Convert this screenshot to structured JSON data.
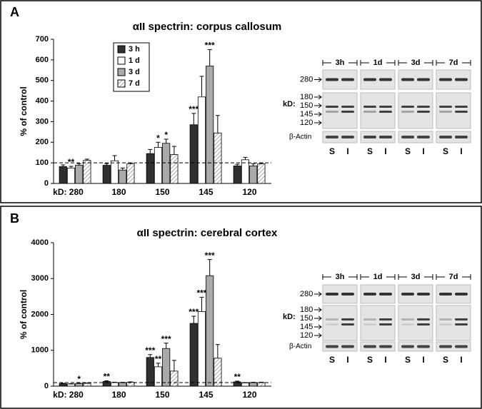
{
  "chart_data": [
    {
      "type": "bar",
      "title": "αII spectrin: corpus callosum",
      "y_label": "% of control",
      "categories": [
        "kD: 280",
        "180",
        "150",
        "145",
        "120"
      ],
      "ylim": [
        0,
        700
      ],
      "yticks": [
        0,
        100,
        200,
        300,
        400,
        500,
        600,
        700
      ],
      "reference_line": 100,
      "legend": "upper left",
      "series": [
        {
          "name": "3 h",
          "color": "#303030",
          "values": [
            82,
            88,
            145,
            285,
            85
          ],
          "errors": [
            8,
            8,
            20,
            55,
            8
          ],
          "stars": [
            null,
            null,
            null,
            "***",
            null
          ]
        },
        {
          "name": "1 d",
          "color": "#ffffff",
          "values": [
            75,
            110,
            175,
            420,
            115
          ],
          "errors": [
            8,
            25,
            25,
            100,
            12
          ],
          "stars": [
            "**",
            null,
            "*",
            null,
            null
          ]
        },
        {
          "name": "3 d",
          "color": "#aaaaaa",
          "values": [
            88,
            65,
            195,
            570,
            85
          ],
          "errors": [
            8,
            10,
            20,
            80,
            10
          ],
          "stars": [
            null,
            null,
            "*",
            "***",
            null
          ]
        },
        {
          "name": "7 d",
          "color": "#ffffff",
          "pattern": "hatch",
          "values": [
            112,
            95,
            140,
            245,
            95
          ],
          "errors": [
            6,
            5,
            40,
            85,
            5
          ],
          "stars": [
            null,
            null,
            null,
            null,
            null
          ]
        }
      ]
    },
    {
      "type": "bar",
      "title": "αII spectrin: cerebral cortex",
      "y_label": "% of control",
      "categories": [
        "kD: 280",
        "180",
        "150",
        "145",
        "120"
      ],
      "ylim": [
        0,
        4000
      ],
      "yticks": [
        0,
        1000,
        2000,
        3000,
        4000
      ],
      "reference_line": 100,
      "series": [
        {
          "name": "3 h",
          "color": "#303030",
          "values": [
            70,
            130,
            800,
            1750,
            120
          ],
          "errors": [
            10,
            20,
            80,
            200,
            20
          ],
          "stars": [
            null,
            "**",
            "***",
            "***",
            "**"
          ]
        },
        {
          "name": "1 d",
          "color": "#ffffff",
          "values": [
            60,
            100,
            540,
            2080,
            90
          ],
          "errors": [
            10,
            10,
            100,
            400,
            10
          ],
          "stars": [
            null,
            null,
            "**",
            "***",
            null
          ]
        },
        {
          "name": "3 d",
          "color": "#aaaaaa",
          "values": [
            75,
            100,
            1050,
            3080,
            100
          ],
          "errors": [
            10,
            10,
            150,
            450,
            10
          ],
          "stars": [
            "*",
            null,
            "***",
            "***",
            null
          ]
        },
        {
          "name": "7 d",
          "color": "#ffffff",
          "pattern": "hatch",
          "values": [
            80,
            110,
            420,
            780,
            100
          ],
          "errors": [
            10,
            10,
            300,
            380,
            10
          ],
          "stars": [
            null,
            null,
            null,
            null,
            null
          ]
        }
      ]
    }
  ],
  "panels": [
    {
      "label": "A",
      "blot": {
        "timepoints": [
          "3h",
          "1d",
          "3d",
          "7d"
        ],
        "top_marker": "280",
        "kd_label": "kD:",
        "markers": [
          "180",
          "150",
          "145",
          "120"
        ],
        "actin": "β-Actin",
        "lanes": [
          "S",
          "I",
          "S",
          "I",
          "S",
          "I",
          "S",
          "I"
        ]
      }
    },
    {
      "label": "B",
      "blot": {
        "timepoints": [
          "3h",
          "1d",
          "3d",
          "7d"
        ],
        "top_marker": "280",
        "kd_label": "kD:",
        "markers": [
          "180",
          "150",
          "145",
          "120"
        ],
        "actin": "β-Actin",
        "lanes": [
          "S",
          "I",
          "S",
          "I",
          "S",
          "I",
          "S",
          "I"
        ]
      }
    }
  ]
}
